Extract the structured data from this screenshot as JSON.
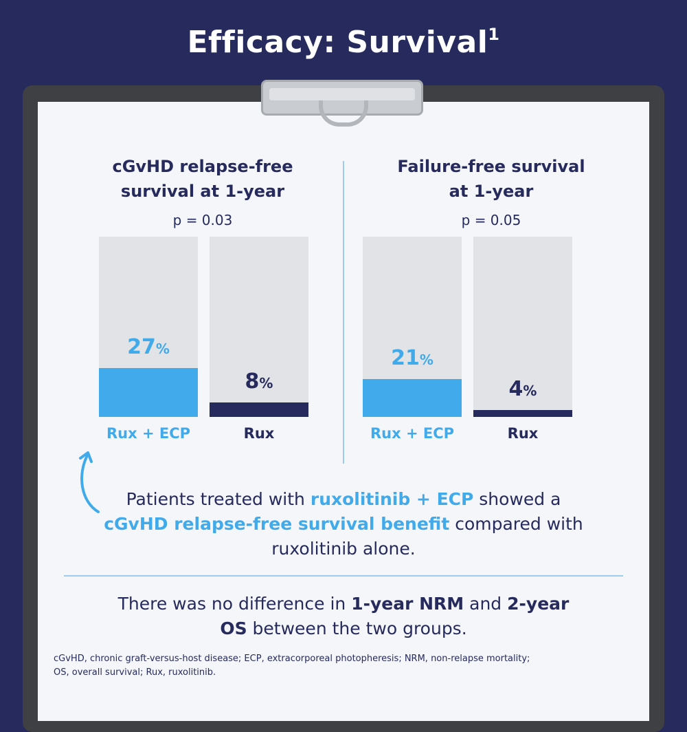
{
  "title": {
    "main": "Efficacy: Survival",
    "sup": "1"
  },
  "chart_data": [
    {
      "type": "bar",
      "title": "cGvHD relapse-free survival at 1-year",
      "title_lines": [
        "cGvHD relapse-free",
        "survival at 1-year"
      ],
      "p_value": "p = 0.03",
      "categories": [
        "Rux + ECP",
        "Rux"
      ],
      "values": [
        27,
        8
      ],
      "value_labels": [
        "27",
        "8"
      ],
      "unit": "%",
      "ylim": [
        0,
        100
      ],
      "colors": [
        "#41aaea",
        "#262a5c"
      ]
    },
    {
      "type": "bar",
      "title": "Failure-free survival at 1-year",
      "title_lines": [
        "Failure-free survival",
        "at 1-year"
      ],
      "p_value": "p = 0.05",
      "categories": [
        "Rux + ECP",
        "Rux"
      ],
      "values": [
        21,
        4
      ],
      "value_labels": [
        "21",
        "4"
      ],
      "unit": "%",
      "ylim": [
        0,
        100
      ],
      "colors": [
        "#41aaea",
        "#262a5c"
      ]
    }
  ],
  "message": {
    "t1": "Patients treated with ",
    "b1": "ruxolitinib + ECP",
    "t2": " showed a ",
    "b2": "cGvHD relapse-free survival benefit",
    "t3": " compared with ruxolitinib alone."
  },
  "message2": {
    "t1": "There was no difference in ",
    "b1": "1-year NRM",
    "t2": " and ",
    "b2": "2-year OS",
    "t3": " between the two groups."
  },
  "footnote": {
    "line1": "cGvHD, chronic graft-versus-host disease; ECP, extracorporeal photopheresis; NRM, non-relapse mortality;",
    "line2": "OS, overall survival; Rux, ruxolitinib."
  },
  "icons": {
    "arrow": "curved-arrow-up-icon",
    "clip": "clipboard-clip-icon"
  }
}
